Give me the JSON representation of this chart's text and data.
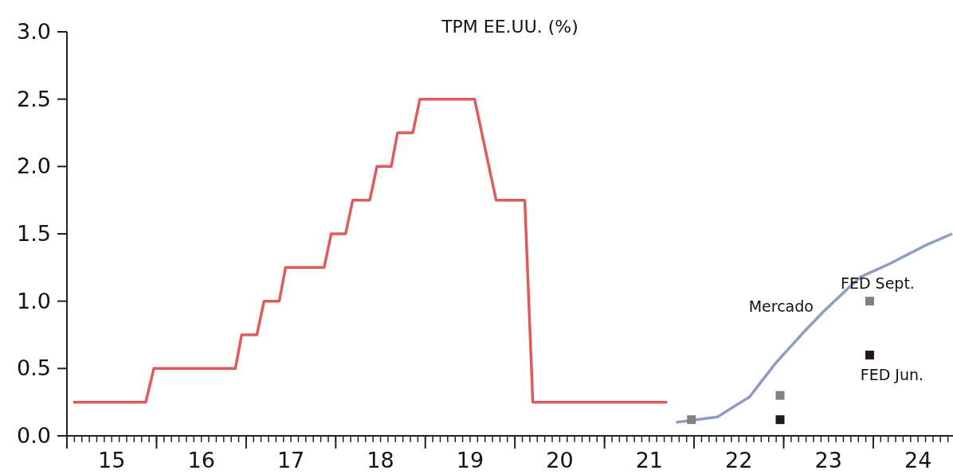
{
  "chart_data": {
    "type": "line",
    "title": "TPM EE.UU. (%)",
    "xlim": [
      15,
      24.89
    ],
    "xticks": [
      {
        "value": 15,
        "label": null
      },
      {
        "value": 15.5,
        "label": "15"
      },
      {
        "value": 16,
        "label": null
      },
      {
        "value": 16.5,
        "label": "16"
      },
      {
        "value": 17,
        "label": null
      },
      {
        "value": 17.5,
        "label": "17"
      },
      {
        "value": 18,
        "label": null
      },
      {
        "value": 18.5,
        "label": "18"
      },
      {
        "value": 19,
        "label": null
      },
      {
        "value": 19.5,
        "label": "19"
      },
      {
        "value": 20,
        "label": null
      },
      {
        "value": 20.5,
        "label": "20"
      },
      {
        "value": 21,
        "label": null
      },
      {
        "value": 21.5,
        "label": "21"
      },
      {
        "value": 22,
        "label": null
      },
      {
        "value": 22.5,
        "label": "22"
      },
      {
        "value": 23,
        "label": null
      },
      {
        "value": 23.5,
        "label": "23"
      },
      {
        "value": 24,
        "label": null
      },
      {
        "value": 24.5,
        "label": "24"
      }
    ],
    "ylim": [
      0,
      3
    ],
    "yticks": [
      {
        "value": 0,
        "label": "0.0"
      },
      {
        "value": 0.5,
        "label": "0.5"
      },
      {
        "value": 1,
        "label": "1.0"
      },
      {
        "value": 1.5,
        "label": "1.5"
      },
      {
        "value": 2,
        "label": "2.0"
      },
      {
        "value": 2.5,
        "label": "2.5"
      },
      {
        "value": 3,
        "label": "3.0"
      }
    ],
    "grid": false,
    "series": [
      {
        "color": "#e05a5a",
        "x": [
          15.07,
          15.88,
          15.97,
          16.88,
          16.95,
          17.12,
          17.2,
          17.37,
          17.44,
          17.87,
          17.95,
          18.11,
          18.19,
          18.38,
          18.46,
          18.62,
          18.69,
          18.86,
          18.94,
          19.55,
          19.79,
          20.11,
          20.2,
          21.7
        ],
        "values": [
          0.25,
          0.25,
          0.5,
          0.5,
          0.75,
          0.75,
          1,
          1,
          1.25,
          1.25,
          1.5,
          1.5,
          1.75,
          1.75,
          2,
          2,
          2.25,
          2.25,
          2.5,
          2.5,
          1.75,
          1.75,
          0.25,
          0.25
        ]
      },
      {
        "name": "Mercado",
        "color": "#8e9dbf",
        "x": [
          21.8,
          22.26,
          22.62,
          22.91,
          23.21,
          23.44,
          23.71,
          23.86,
          24.19,
          24.6,
          24.88
        ],
        "values": [
          0.1,
          0.14,
          0.29,
          0.54,
          0.76,
          0.92,
          1.09,
          1.18,
          1.28,
          1.42,
          1.5
        ]
      },
      {
        "type": "scatter",
        "name": "FED Jun.",
        "color": "#231815",
        "marker": "square",
        "x": [
          22.96,
          23.96
        ],
        "values": [
          0.12,
          0.6
        ]
      },
      {
        "type": "scatter",
        "name": "FED Sept.",
        "color": "#808080",
        "marker": "square",
        "x": [
          21.97,
          22.96,
          23.96
        ],
        "values": [
          0.12,
          0.3,
          1.0
        ]
      }
    ]
  }
}
